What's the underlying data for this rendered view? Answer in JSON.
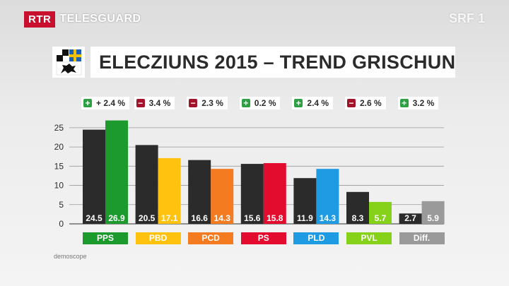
{
  "broadcast": {
    "logo": "RTR",
    "show": "TELESGUARD",
    "channel": "SRF 1"
  },
  "title": "ELECZIUNS 2015 – TREND GRISCHUN",
  "source": "demoscope",
  "colors": {
    "positive": "#2ea043",
    "negative": "#a3122a",
    "previous_bar": "#2b2b2b"
  },
  "chart_data": {
    "type": "bar",
    "categories": [
      "PPS",
      "PBD",
      "PCD",
      "PS",
      "PLD",
      "PVL",
      "Diff."
    ],
    "category_colors": [
      "#1d9a2e",
      "#ffc20e",
      "#f47b20",
      "#e30b2e",
      "#1e9be3",
      "#86d11a",
      "#9a9a9a"
    ],
    "series": [
      {
        "values": [
          24.5,
          20.5,
          16.6,
          15.6,
          11.9,
          8.3,
          2.7
        ]
      },
      {
        "values": [
          26.9,
          17.1,
          14.3,
          15.8,
          14.3,
          5.7,
          5.9
        ]
      }
    ],
    "value_labels": [
      [
        "24.5",
        "20.5",
        "16.6",
        "15.6",
        "11.9",
        "8.3",
        "2.7"
      ],
      [
        "26.9",
        "17.1",
        "14.3",
        "15.8",
        "14.3",
        "5.7",
        "5.9"
      ]
    ],
    "changes": [
      {
        "sign": "+",
        "label": "+ 2.4 %"
      },
      {
        "sign": "-",
        "label": "3.4 %"
      },
      {
        "sign": "-",
        "label": "2.3 %"
      },
      {
        "sign": "+",
        "label": "0.2 %"
      },
      {
        "sign": "+",
        "label": "2.4 %"
      },
      {
        "sign": "-",
        "label": "2.6 %"
      },
      {
        "sign": "+",
        "label": "3.2 %"
      }
    ],
    "yticks": [
      "0",
      "5",
      "10",
      "15",
      "20",
      "25"
    ],
    "ylim": [
      0,
      27
    ],
    "grid": true
  }
}
